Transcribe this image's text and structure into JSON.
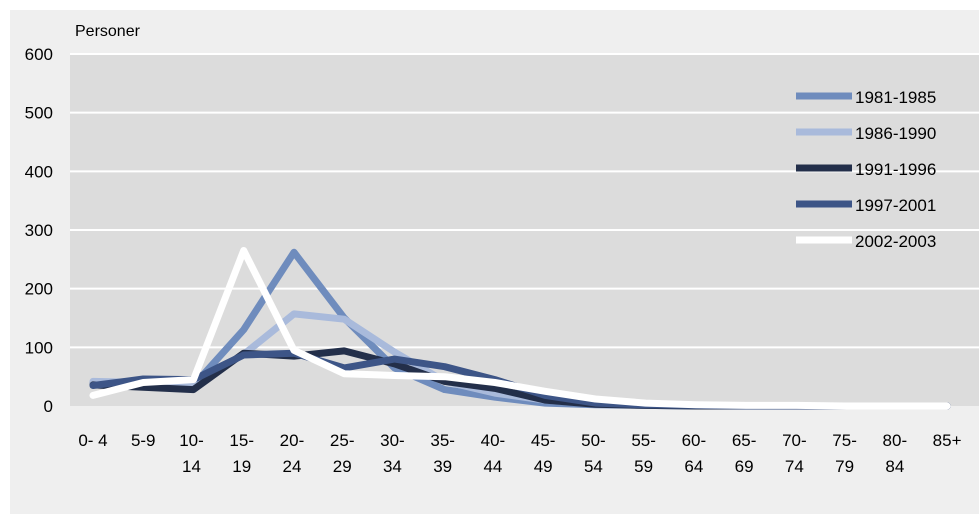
{
  "chart_data": {
    "type": "line",
    "title": "",
    "ylabel": "Personer",
    "xlabel": "",
    "ylim": [
      0,
      600
    ],
    "yticks": [
      0,
      100,
      200,
      300,
      400,
      500,
      600
    ],
    "grid": "horizontal",
    "legend_position": "top-right",
    "categories": [
      [
        "0- 4"
      ],
      [
        "5-9"
      ],
      [
        "10-",
        "14"
      ],
      [
        "15-",
        "19"
      ],
      [
        "20-",
        "24"
      ],
      [
        "25-",
        "29"
      ],
      [
        "30-",
        "34"
      ],
      [
        "35-",
        "39"
      ],
      [
        "40-",
        "44"
      ],
      [
        "45-",
        "49"
      ],
      [
        "50-",
        "54"
      ],
      [
        "55-",
        "59"
      ],
      [
        "60-",
        "64"
      ],
      [
        "65-",
        "69"
      ],
      [
        "70-",
        "74"
      ],
      [
        "75-",
        "79"
      ],
      [
        "80-",
        "84"
      ],
      [
        "85+"
      ]
    ],
    "series": [
      {
        "name": "1981-1985",
        "color": "#6f8cbd",
        "values": [
          40,
          38,
          35,
          130,
          262,
          150,
          65,
          28,
          15,
          5,
          2,
          1,
          0,
          0,
          0,
          0,
          0,
          0
        ]
      },
      {
        "name": "1986-1990",
        "color": "#a9badb",
        "values": [
          42,
          40,
          38,
          88,
          157,
          148,
          92,
          42,
          22,
          10,
          4,
          2,
          1,
          0,
          0,
          0,
          0,
          0
        ]
      },
      {
        "name": "1991-1996",
        "color": "#232f4a",
        "values": [
          36,
          32,
          28,
          90,
          85,
          94,
          72,
          42,
          30,
          10,
          3,
          1,
          0,
          0,
          0,
          0,
          0,
          0
        ]
      },
      {
        "name": "1997-2001",
        "color": "#3d5587",
        "values": [
          35,
          46,
          45,
          87,
          90,
          65,
          80,
          67,
          45,
          18,
          5,
          2,
          1,
          0,
          0,
          0,
          0,
          0
        ]
      },
      {
        "name": "2002-2003",
        "color": "#ffffff",
        "values": [
          18,
          40,
          45,
          265,
          95,
          55,
          52,
          50,
          40,
          25,
          12,
          5,
          2,
          1,
          1,
          0,
          0,
          0
        ]
      }
    ]
  }
}
